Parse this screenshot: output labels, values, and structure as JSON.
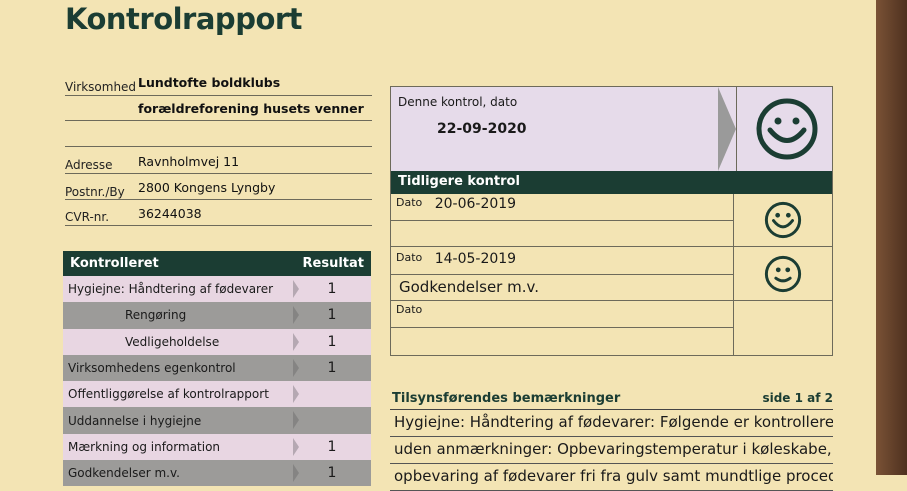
{
  "title": "Kontrolrapport",
  "company": {
    "virksomhed_label": "Virksomhed",
    "virksomhed_line1": "Lundtofte boldklubs",
    "virksomhed_line2": "forældreforening husets venner",
    "adresse_label": "Adresse",
    "adresse": "Ravnholmvej 11",
    "postnr_label": "Postnr./By",
    "postnr": "2800  Kongens Lyngby",
    "cvr_label": "CVR-nr.",
    "cvr": "36244038"
  },
  "table": {
    "header_item": "Kontrolleret",
    "header_result": "Resultat",
    "rows": [
      {
        "item": "Hygiejne: Håndtering af fødevarer",
        "result": "1"
      },
      {
        "item": "Rengøring",
        "result": "1"
      },
      {
        "item": "Vedligeholdelse",
        "result": "1"
      },
      {
        "item": "Virksomhedens egenkontrol",
        "result": "1"
      },
      {
        "item": "Offentliggørelse af kontrolrapport",
        "result": ""
      },
      {
        "item": "Uddannelse i hygiejne",
        "result": ""
      },
      {
        "item": "Mærkning og information",
        "result": "1"
      },
      {
        "item": "Godkendelser m.v.",
        "result": "1"
      }
    ]
  },
  "current": {
    "label": "Denne kontrol, dato",
    "date": "22-09-2020",
    "smiley": "happy-smiley-icon"
  },
  "previous": {
    "header": "Tidligere kontrol",
    "entries": [
      {
        "label": "Dato",
        "date": "20-06-2019",
        "note": "",
        "smiley": "happy-smiley-icon"
      },
      {
        "label": "Dato",
        "date": "14-05-2019",
        "note": "Godkendelser m.v.",
        "smiley": "smiley-icon"
      },
      {
        "label": "Dato",
        "date": "",
        "note": "",
        "smiley": ""
      }
    ]
  },
  "remarks": {
    "title": "Tilsynsførendes bemærkninger",
    "page": "side 1 af 2",
    "lines": [
      "Hygiejne: Håndtering af fødevarer: Følgende er kontrolleret",
      "uden anmærkninger: Opbevaringstemperatur i køleskabe,",
      "opbevaring af fødevarer fri fra gulv samt mundtlige procedure"
    ]
  },
  "colors": {
    "brand_green": "#1b3d33",
    "paper": "#f3e4b4",
    "row_pink": "#e8d6e2",
    "row_gray": "#9c9b99"
  }
}
